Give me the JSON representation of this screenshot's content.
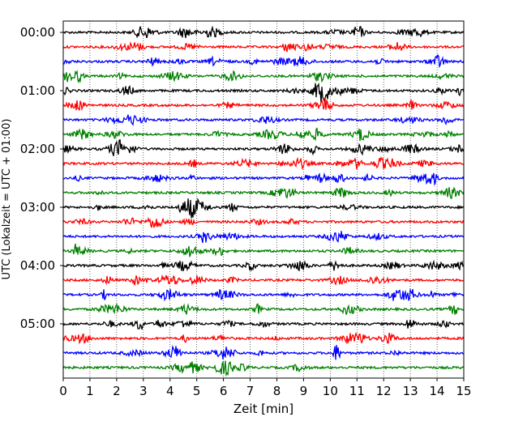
{
  "chart_data": {
    "type": "line",
    "subtype": "helicorder-seismogram",
    "xlabel": "Zeit  [min]",
    "ylabel": "UTC (Lokalzeit = UTC + 01:00)",
    "xlim": [
      0,
      15
    ],
    "x_ticks": [
      "0",
      "1",
      "2",
      "3",
      "4",
      "5",
      "6",
      "7",
      "8",
      "9",
      "10",
      "11",
      "12",
      "13",
      "14",
      "15"
    ],
    "y_ticks": [
      "00:00",
      "01:00",
      "02:00",
      "03:00",
      "04:00",
      "05:00"
    ],
    "trace_minutes_per_line": 15,
    "trace_count": 24,
    "trace_colors_cycle": [
      "#000000",
      "#ff0000",
      "#0000ff",
      "#008000"
    ],
    "grid": "vertical dotted lines at each minute"
  }
}
